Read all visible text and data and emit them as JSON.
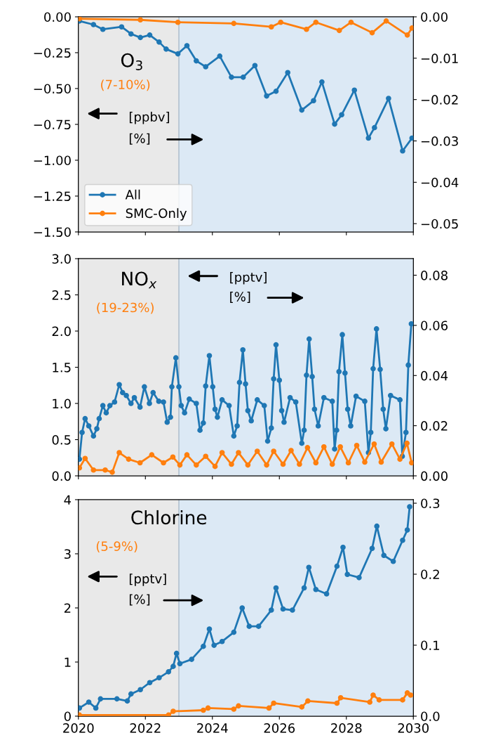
{
  "chart_data": [
    {
      "type": "line",
      "annotations": [
        "O$_{3}$",
        "(7-10%)",
        "[ppbv]",
        "[%]"
      ],
      "marker": "circle",
      "line_style": "solid",
      "legend": "lower left",
      "tick_labels": "y",
      "xlim": [
        2020,
        2030
      ],
      "xticks": [
        2020,
        2022,
        2024,
        2026,
        2028,
        2030
      ],
      "ylim": [
        -1.5,
        0
      ],
      "yticks": [
        {
          "value": -1.5,
          "label": "−1.50"
        },
        {
          "value": -1.25,
          "label": "−1.25"
        },
        {
          "value": -1.0,
          "label": "−1.00"
        },
        {
          "value": -0.75,
          "label": "−0.75"
        },
        {
          "value": -0.5,
          "label": "−0.50"
        },
        {
          "value": -0.25,
          "label": "−0.25"
        },
        {
          "value": 0,
          "label": "0.00"
        }
      ],
      "y2lim": [
        -0.052,
        0
      ],
      "y2ticks": [
        {
          "value": -0.05,
          "label": "−0.05"
        },
        {
          "value": -0.04,
          "label": "−0.04"
        },
        {
          "value": -0.03,
          "label": "−0.03"
        },
        {
          "value": -0.02,
          "label": "−0.02"
        },
        {
          "value": -0.01,
          "label": "−0.01"
        },
        {
          "value": 0,
          "label": "0.00"
        }
      ],
      "bands": [
        {
          "axis": "x",
          "from": 2020,
          "to": 2023,
          "color": "#e9e9e9"
        },
        {
          "axis": "x",
          "from": 2023,
          "to": 2030,
          "color": "#dce9f5"
        }
      ],
      "ref_lines": [
        {
          "axis": "x",
          "value": 2023,
          "color": "#a9b9c9"
        }
      ],
      "series": [
        {
          "name": "All",
          "color": "#1f77b4",
          "x": [
            2020.03,
            2020.45,
            2020.73,
            2021.29,
            2021.57,
            2021.85,
            2022.13,
            2022.41,
            2022.62,
            2022.97,
            2023.24,
            2023.52,
            2023.8,
            2024.22,
            2024.57,
            2024.92,
            2025.27,
            2025.62,
            2025.9,
            2026.25,
            2026.67,
            2027.02,
            2027.27,
            2027.65,
            2027.86,
            2028.24,
            2028.66,
            2028.84,
            2029.26,
            2029.68,
            2029.96
          ],
          "values": [
            -0.029,
            -0.054,
            -0.087,
            -0.07,
            -0.119,
            -0.144,
            -0.127,
            -0.176,
            -0.225,
            -0.258,
            -0.201,
            -0.307,
            -0.348,
            -0.274,
            -0.421,
            -0.421,
            -0.34,
            -0.552,
            -0.519,
            -0.389,
            -0.65,
            -0.585,
            -0.454,
            -0.748,
            -0.683,
            -0.511,
            -0.846,
            -0.773,
            -0.569,
            -0.935,
            -0.846
          ]
        },
        {
          "name": "SMC-Only",
          "color": "#ff7f0e",
          "x": [
            2020.03,
            2021.85,
            2022.97,
            2024.64,
            2025.76,
            2026.04,
            2026.81,
            2027.09,
            2027.79,
            2028.14,
            2028.77,
            2029.19,
            2029.82,
            2029.96
          ],
          "values": [
            -0.013,
            -0.021,
            -0.038,
            -0.046,
            -0.07,
            -0.038,
            -0.087,
            -0.038,
            -0.095,
            -0.038,
            -0.111,
            -0.029,
            -0.127,
            -0.078
          ]
        }
      ]
    },
    {
      "type": "line",
      "annotations": [
        "NO$_{x}$",
        "(19-23%)",
        "[pptv]",
        "[%]"
      ],
      "marker": "circle",
      "line_style": "solid",
      "tick_labels": "y",
      "xlim": [
        2020,
        2030
      ],
      "xticks": [
        2020,
        2022,
        2024,
        2026,
        2028,
        2030
      ],
      "ylim": [
        0,
        3
      ],
      "yticks": [
        {
          "value": 0,
          "label": "0.0"
        },
        {
          "value": 0.5,
          "label": "0.5"
        },
        {
          "value": 1,
          "label": "1.0"
        },
        {
          "value": 1.5,
          "label": "1.5"
        },
        {
          "value": 2,
          "label": "2.0"
        },
        {
          "value": 2.5,
          "label": "2.5"
        },
        {
          "value": 3,
          "label": "3.0"
        }
      ],
      "y2lim": [
        0,
        0.0866
      ],
      "y2ticks": [
        {
          "value": 0,
          "label": "0.00"
        },
        {
          "value": 0.02,
          "label": "0.02"
        },
        {
          "value": 0.04,
          "label": "0.04"
        },
        {
          "value": 0.06,
          "label": "0.06"
        },
        {
          "value": 0.08,
          "label": "0.08"
        }
      ],
      "bands": [
        {
          "axis": "x",
          "from": 2020,
          "to": 2023,
          "color": "#e9e9e9"
        },
        {
          "axis": "x",
          "from": 2023,
          "to": 2030,
          "color": "#dce9f5"
        }
      ],
      "ref_lines": [
        {
          "axis": "x",
          "value": 2023,
          "color": "#a9b9c9"
        }
      ],
      "series": [
        {
          "color": "#1f77b4",
          "x": [
            2020.03,
            2020.11,
            2020.2,
            2020.31,
            2020.45,
            2020.55,
            2020.62,
            2020.73,
            2020.83,
            2020.94,
            2021.08,
            2021.22,
            2021.32,
            2021.43,
            2021.57,
            2021.67,
            2021.84,
            2021.97,
            2022.12,
            2022.23,
            2022.4,
            2022.54,
            2022.65,
            2022.75,
            2022.79,
            2022.91,
            2023.0,
            2023.07,
            2023.17,
            2023.31,
            2023.52,
            2023.63,
            2023.73,
            2023.8,
            2023.91,
            2024.01,
            2024.08,
            2024.15,
            2024.29,
            2024.5,
            2024.64,
            2024.74,
            2024.81,
            2024.91,
            2024.99,
            2025.06,
            2025.16,
            2025.34,
            2025.55,
            2025.65,
            2025.76,
            2025.83,
            2025.9,
            2026.0,
            2026.07,
            2026.14,
            2026.32,
            2026.49,
            2026.67,
            2026.74,
            2026.81,
            2026.89,
            2026.98,
            2027.05,
            2027.16,
            2027.33,
            2027.58,
            2027.65,
            2027.71,
            2027.78,
            2027.88,
            2027.96,
            2028.04,
            2028.13,
            2028.29,
            2028.55,
            2028.66,
            2028.73,
            2028.8,
            2028.9,
            2029.01,
            2029.1,
            2029.18,
            2029.32,
            2029.6,
            2029.67,
            2029.78,
            2029.85,
            2029.94
          ],
          "values": [
            0.23,
            0.6,
            0.79,
            0.69,
            0.55,
            0.65,
            0.79,
            0.97,
            0.87,
            0.97,
            1.02,
            1.26,
            1.15,
            1.11,
            1.0,
            1.08,
            0.95,
            1.23,
            1.0,
            1.15,
            1.03,
            1.02,
            0.74,
            0.81,
            1.23,
            1.63,
            1.23,
            0.97,
            0.87,
            1.06,
            1.0,
            0.63,
            0.73,
            1.24,
            1.66,
            1.23,
            0.92,
            0.81,
            1.05,
            0.97,
            0.55,
            0.69,
            1.29,
            1.74,
            1.27,
            0.9,
            0.76,
            1.05,
            0.97,
            0.48,
            0.66,
            1.34,
            1.81,
            1.32,
            0.9,
            0.74,
            1.08,
            1.02,
            0.45,
            0.63,
            1.39,
            1.89,
            1.37,
            0.92,
            0.69,
            1.08,
            1.03,
            0.37,
            0.63,
            1.44,
            1.95,
            1.42,
            0.92,
            0.69,
            1.1,
            1.03,
            0.32,
            0.6,
            1.48,
            2.03,
            1.47,
            0.92,
            0.65,
            1.11,
            1.05,
            0.27,
            0.6,
            1.53,
            2.1
          ]
        },
        {
          "color": "#ff7f0e",
          "x": [
            2020.03,
            2020.2,
            2020.45,
            2020.8,
            2021.01,
            2021.22,
            2021.5,
            2021.84,
            2022.19,
            2022.54,
            2022.82,
            2023.03,
            2023.24,
            2023.52,
            2023.8,
            2024.08,
            2024.29,
            2024.57,
            2024.78,
            2025.06,
            2025.34,
            2025.62,
            2025.83,
            2026.11,
            2026.35,
            2026.6,
            2026.84,
            2027.09,
            2027.33,
            2027.58,
            2027.82,
            2028.06,
            2028.31,
            2028.55,
            2028.83,
            2029.04,
            2029.36,
            2029.6,
            2029.81,
            2029.95
          ],
          "values": [
            0.11,
            0.24,
            0.08,
            0.08,
            0.05,
            0.32,
            0.23,
            0.18,
            0.29,
            0.18,
            0.26,
            0.15,
            0.29,
            0.15,
            0.27,
            0.13,
            0.32,
            0.16,
            0.32,
            0.15,
            0.34,
            0.15,
            0.34,
            0.16,
            0.35,
            0.16,
            0.39,
            0.18,
            0.4,
            0.16,
            0.4,
            0.18,
            0.42,
            0.19,
            0.44,
            0.19,
            0.44,
            0.23,
            0.45,
            0.18
          ]
        }
      ]
    },
    {
      "type": "line",
      "annotations": [
        "Chlorine",
        "(5-9%)",
        "[pptv]",
        "[%]"
      ],
      "marker": "circle",
      "line_style": "solid",
      "xlim": [
        2020,
        2030
      ],
      "xticks": [
        2020,
        2022,
        2024,
        2026,
        2028,
        2030
      ],
      "ylim": [
        0,
        4
      ],
      "yticks": [
        0,
        1,
        2,
        3,
        4
      ],
      "y2lim": [
        0,
        0.305
      ],
      "y2ticks": [
        {
          "value": 0,
          "label": "0.0"
        },
        {
          "value": 0.1,
          "label": "0.1"
        },
        {
          "value": 0.2,
          "label": "0.2"
        },
        {
          "value": 0.3,
          "label": "0.3"
        }
      ],
      "bands": [
        {
          "axis": "x",
          "from": 2020,
          "to": 2023,
          "color": "#e9e9e9"
        },
        {
          "axis": "x",
          "from": 2023,
          "to": 2030,
          "color": "#dce9f5"
        }
      ],
      "ref_lines": [
        {
          "axis": "x",
          "value": 2023,
          "color": "#a9b9c9"
        }
      ],
      "series": [
        {
          "color": "#1f77b4",
          "x": [
            2020.03,
            2020.31,
            2020.52,
            2020.66,
            2021.15,
            2021.46,
            2021.57,
            2021.85,
            2022.13,
            2022.41,
            2022.69,
            2022.83,
            2022.93,
            2023.03,
            2023.38,
            2023.73,
            2023.91,
            2024.05,
            2024.29,
            2024.64,
            2024.89,
            2025.1,
            2025.38,
            2025.76,
            2025.9,
            2026.11,
            2026.39,
            2026.74,
            2026.88,
            2027.09,
            2027.41,
            2027.72,
            2027.9,
            2028.03,
            2028.38,
            2028.77,
            2028.91,
            2029.12,
            2029.4,
            2029.68,
            2029.82,
            2029.89
          ],
          "values": [
            0.15,
            0.26,
            0.15,
            0.32,
            0.32,
            0.28,
            0.41,
            0.49,
            0.62,
            0.71,
            0.82,
            0.92,
            1.16,
            0.97,
            1.05,
            1.29,
            1.61,
            1.31,
            1.38,
            1.55,
            2.0,
            1.66,
            1.66,
            1.96,
            2.37,
            1.98,
            1.96,
            2.37,
            2.75,
            2.34,
            2.26,
            2.77,
            3.12,
            2.62,
            2.56,
            3.1,
            3.51,
            2.97,
            2.86,
            3.25,
            3.44,
            3.87
          ]
        },
        {
          "color": "#ff7f0e",
          "x": [
            2020.03,
            2022.69,
            2022.83,
            2023.73,
            2023.87,
            2024.64,
            2024.78,
            2025.69,
            2025.83,
            2026.67,
            2026.85,
            2027.72,
            2027.83,
            2028.7,
            2028.8,
            2028.98,
            2029.68,
            2029.82,
            2029.92
          ],
          "values": [
            0.02,
            0.02,
            0.09,
            0.11,
            0.15,
            0.13,
            0.19,
            0.15,
            0.24,
            0.17,
            0.28,
            0.24,
            0.34,
            0.26,
            0.39,
            0.3,
            0.3,
            0.43,
            0.39
          ]
        }
      ]
    }
  ]
}
